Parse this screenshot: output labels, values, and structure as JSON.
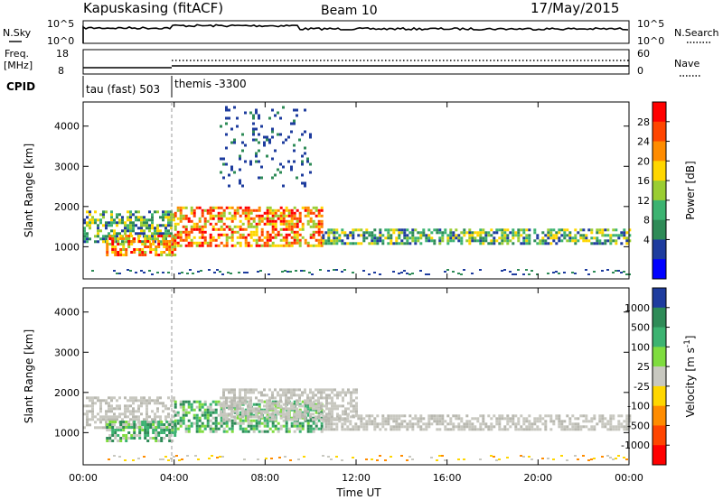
{
  "header": {
    "title": "Kapuskasing (fitACF)",
    "beam": "Beam 10",
    "date": "17/May/2015"
  },
  "top_panels": {
    "nsky": {
      "label": "N.Sky",
      "ticks": [
        "10^5",
        "10^0"
      ]
    },
    "nsearch": {
      "label": "N.Search",
      "ticks": [
        "10^5",
        "10^0"
      ]
    },
    "freq": {
      "label": "Freq.",
      "unit": "[MHz]",
      "ticks": [
        "18",
        "8"
      ]
    },
    "nave": {
      "label": "Nave",
      "ticks": [
        "60",
        "0"
      ]
    },
    "cpid": {
      "label": "CPID",
      "segments": [
        {
          "name": "tau (fast) 503",
          "start": 0,
          "end": 4
        },
        {
          "name": "themis -3300",
          "start": 4,
          "end": 24
        }
      ]
    }
  },
  "chart_data": [
    {
      "type": "heatmap",
      "title": "",
      "xlabel": "",
      "ylabel": "Slant Range [km]",
      "xlim": [
        0,
        24
      ],
      "ylim": [
        200,
        4600
      ],
      "yticks": [
        "1000",
        "2000",
        "3000",
        "4000"
      ],
      "colorbar": {
        "label": "Power [dB]",
        "ticks": [
          "28",
          "24",
          "20",
          "16",
          "12",
          "8",
          "4"
        ],
        "colors": [
          "#ff0000",
          "#ff4500",
          "#ff8c00",
          "#ffd700",
          "#9acd32",
          "#3cb371",
          "#2e8b57",
          "#1e3c9e",
          "#0000ff"
        ]
      },
      "bands": [
        {
          "x0": 0.0,
          "x1": 4.0,
          "y0": 1100,
          "y1": 1900,
          "level": "mid"
        },
        {
          "x0": 1.0,
          "x1": 4.0,
          "y0": 800,
          "y1": 1300,
          "level": "high"
        },
        {
          "x0": 4.0,
          "x1": 10.5,
          "y0": 1000,
          "y1": 2000,
          "level": "high"
        },
        {
          "x0": 10.5,
          "x1": 24.0,
          "y0": 1050,
          "y1": 1450,
          "level": "mid"
        },
        {
          "x0": 6.0,
          "x1": 10.0,
          "y0": 2500,
          "y1": 4500,
          "level": "low"
        }
      ]
    },
    {
      "type": "heatmap",
      "title": "",
      "xlabel": "Time UT",
      "ylabel": "Slant Range [km]",
      "xlim": [
        0,
        24
      ],
      "ylim": [
        200,
        4600
      ],
      "xticks": [
        "00:00",
        "04:00",
        "08:00",
        "12:00",
        "16:00",
        "20:00",
        "00:00"
      ],
      "yticks": [
        "1000",
        "2000",
        "3000",
        "4000"
      ],
      "colorbar": {
        "label": "Velocity [m s",
        "label_sup": "-1",
        "label_end": "]",
        "ticks": [
          "1000",
          "500",
          "100",
          "25",
          "-25",
          "-100",
          "-500",
          "-1000"
        ],
        "colors": [
          "#1e3c9e",
          "#2e8b57",
          "#3cb371",
          "#7fdc3f",
          "#c8c8c0",
          "#ffd700",
          "#ff8c00",
          "#ff4500",
          "#ff0000"
        ]
      },
      "bands": [
        {
          "x0": 0.0,
          "x1": 4.0,
          "y0": 1100,
          "y1": 1900,
          "level": "ground"
        },
        {
          "x0": 1.0,
          "x1": 4.0,
          "y0": 800,
          "y1": 1300,
          "level": "pos"
        },
        {
          "x0": 4.0,
          "x1": 10.5,
          "y0": 1000,
          "y1": 1800,
          "level": "pos"
        },
        {
          "x0": 6.0,
          "x1": 12.0,
          "y0": 1300,
          "y1": 2100,
          "level": "ground"
        },
        {
          "x0": 10.5,
          "x1": 24.0,
          "y0": 1050,
          "y1": 1450,
          "level": "ground"
        }
      ]
    }
  ]
}
